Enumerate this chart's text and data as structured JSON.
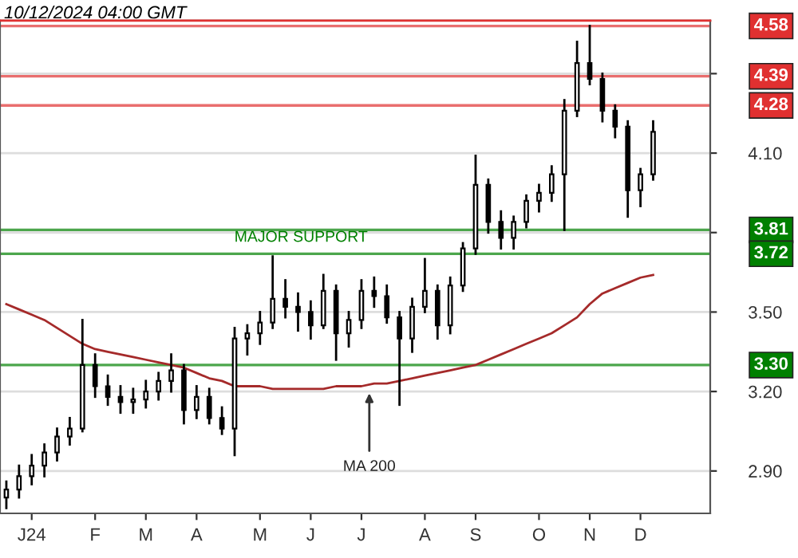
{
  "chart_data": {
    "type": "candlestick",
    "color": "#000000",
    "categories": [
      null,
      null,
      "J24",
      null,
      null,
      null,
      null,
      "F",
      null,
      null,
      null,
      "M",
      null,
      null,
      null,
      "A",
      null,
      null,
      null,
      null,
      "M",
      null,
      null,
      null,
      "J",
      null,
      null,
      null,
      "J",
      null,
      null,
      null,
      null,
      "A",
      null,
      null,
      null,
      "S",
      null,
      null,
      null,
      null,
      "O",
      null,
      null,
      null,
      "N",
      null,
      null,
      null,
      "D",
      null,
      null,
      null,
      null,
      null
    ],
    "ohlc": [
      [
        2.8,
        2.86,
        2.76,
        2.83
      ],
      [
        2.83,
        2.92,
        2.8,
        2.88
      ],
      [
        2.88,
        2.96,
        2.85,
        2.92
      ],
      [
        2.92,
        3.0,
        2.88,
        2.97
      ],
      [
        2.97,
        3.06,
        2.94,
        3.03
      ],
      [
        3.03,
        3.1,
        3.0,
        3.06
      ],
      [
        3.06,
        3.47,
        3.05,
        3.3
      ],
      [
        3.3,
        3.34,
        3.18,
        3.22
      ],
      [
        3.22,
        3.26,
        3.15,
        3.18
      ],
      [
        3.18,
        3.22,
        3.12,
        3.16
      ],
      [
        3.16,
        3.21,
        3.12,
        3.17
      ],
      [
        3.17,
        3.24,
        3.14,
        3.2
      ],
      [
        3.2,
        3.27,
        3.17,
        3.24
      ],
      [
        3.24,
        3.34,
        3.2,
        3.28
      ],
      [
        3.28,
        3.3,
        3.08,
        3.13
      ],
      [
        3.13,
        3.22,
        3.1,
        3.18
      ],
      [
        3.18,
        3.21,
        3.08,
        3.1
      ],
      [
        3.1,
        3.14,
        3.04,
        3.06
      ],
      [
        3.06,
        3.44,
        2.96,
        3.4
      ],
      [
        3.4,
        3.45,
        3.34,
        3.42
      ],
      [
        3.42,
        3.5,
        3.38,
        3.46
      ],
      [
        3.46,
        3.71,
        3.44,
        3.55
      ],
      [
        3.55,
        3.62,
        3.48,
        3.52
      ],
      [
        3.52,
        3.57,
        3.43,
        3.5
      ],
      [
        3.5,
        3.54,
        3.4,
        3.45
      ],
      [
        3.45,
        3.64,
        3.44,
        3.58
      ],
      [
        3.58,
        3.6,
        3.32,
        3.42
      ],
      [
        3.42,
        3.5,
        3.37,
        3.47
      ],
      [
        3.47,
        3.62,
        3.44,
        3.58
      ],
      [
        3.58,
        3.63,
        3.52,
        3.56
      ],
      [
        3.56,
        3.6,
        3.46,
        3.48
      ],
      [
        3.48,
        3.5,
        3.15,
        3.4
      ],
      [
        3.4,
        3.55,
        3.35,
        3.52
      ],
      [
        3.52,
        3.7,
        3.5,
        3.58
      ],
      [
        3.58,
        3.6,
        3.4,
        3.45
      ],
      [
        3.45,
        3.63,
        3.42,
        3.6
      ],
      [
        3.6,
        3.76,
        3.58,
        3.74
      ],
      [
        3.74,
        4.09,
        3.72,
        3.98
      ],
      [
        3.98,
        4.0,
        3.8,
        3.84
      ],
      [
        3.84,
        3.88,
        3.74,
        3.78
      ],
      [
        3.78,
        3.86,
        3.74,
        3.84
      ],
      [
        3.84,
        3.94,
        3.82,
        3.92
      ],
      [
        3.92,
        3.98,
        3.88,
        3.95
      ],
      [
        3.95,
        4.05,
        3.92,
        4.02
      ],
      [
        4.02,
        4.3,
        3.81,
        4.26
      ],
      [
        4.26,
        4.52,
        4.24,
        4.44
      ],
      [
        4.44,
        4.58,
        4.36,
        4.38
      ],
      [
        4.38,
        4.4,
        4.22,
        4.26
      ],
      [
        4.26,
        4.28,
        4.16,
        4.2
      ],
      [
        4.2,
        4.22,
        3.86,
        3.96
      ],
      [
        3.96,
        4.04,
        3.9,
        4.02
      ],
      [
        4.02,
        4.22,
        4.0,
        4.18
      ],
      null,
      null,
      null,
      null
    ],
    "series": [
      {
        "type": "line",
        "color": "#a52a2a",
        "values": [
          3.53,
          3.51,
          3.49,
          3.47,
          3.44,
          3.41,
          3.38,
          3.36,
          3.35,
          3.34,
          3.33,
          3.32,
          3.31,
          3.3,
          3.29,
          3.27,
          3.25,
          3.24,
          3.22,
          3.22,
          3.22,
          3.21,
          3.21,
          3.21,
          3.21,
          3.21,
          3.22,
          3.22,
          3.22,
          3.23,
          3.23,
          3.24,
          3.25,
          3.26,
          3.27,
          3.28,
          3.29,
          3.3,
          3.32,
          3.34,
          3.36,
          3.38,
          3.4,
          3.42,
          3.45,
          3.48,
          3.53,
          3.57,
          3.59,
          3.61,
          3.63,
          3.64,
          null,
          null,
          null,
          null
        ]
      }
    ],
    "ylim": [
      2.74,
      4.6
    ],
    "yticks": [
      {
        "value": 2.9,
        "label": "2.90"
      },
      {
        "value": 3.2,
        "label": "3.20"
      },
      {
        "value": 3.5,
        "label": "3.50"
      },
      {
        "value": 3.8,
        "label": null
      },
      {
        "value": 4.1,
        "label": "4.10"
      },
      {
        "value": 4.4,
        "label": null
      }
    ],
    "grid": "y",
    "ref_lines": [
      {
        "axis": "y",
        "value": 4.58,
        "label": "4.58",
        "color": "#e03030"
      },
      {
        "axis": "y",
        "value": 4.39,
        "label": "4.39",
        "color": "#e03030"
      },
      {
        "axis": "y",
        "value": 4.28,
        "label": "4.28",
        "color": "#e03030"
      },
      {
        "axis": "y",
        "value": 3.81,
        "label": "3.81",
        "color": "#008000"
      },
      {
        "axis": "y",
        "value": 3.72,
        "label": "3.72",
        "color": "#008000"
      },
      {
        "axis": "y",
        "value": 3.3,
        "label": "3.30",
        "color": "#008000"
      }
    ],
    "annotations": [
      "10/12/2024 04:00 GMT",
      {
        "text": "MAJOR SUPPORT",
        "y": 3.72
      },
      {
        "text": "MA 200",
        "y": 3.21
      }
    ]
  }
}
